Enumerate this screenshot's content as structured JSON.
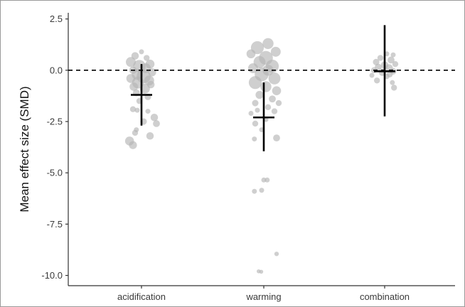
{
  "chart_data": {
    "type": "scatter",
    "title": "",
    "xlabel": "",
    "ylabel": "Mean effect size (SMD)",
    "ylim": [
      -10.5,
      2.8
    ],
    "categories": [
      "acidification",
      "warming",
      "combination"
    ],
    "y_ticks": [
      2.5,
      0.0,
      -2.5,
      -5.0,
      -7.5,
      -10.0
    ],
    "y_tick_labels": [
      "2.5",
      "0.0",
      "-2.5",
      "-5.0",
      "-7.5",
      "-10.0"
    ],
    "reference_line": {
      "y": 0,
      "style": "dashed"
    },
    "grid": false,
    "point_color": "#b5b5b5",
    "summary_color": "#000000",
    "summary": [
      {
        "category": "acidification",
        "mean": -1.2,
        "lower": -2.7,
        "upper": 0.3
      },
      {
        "category": "warming",
        "mean": -2.3,
        "lower": -3.95,
        "upper": -0.6
      },
      {
        "category": "combination",
        "mean": -0.05,
        "lower": -2.25,
        "upper": 2.2
      }
    ],
    "series": [
      {
        "category": "acidification",
        "points": [
          {
            "x": 0,
            "y": 0.9,
            "w": 1.0
          },
          {
            "x": -0.15,
            "y": 0.7,
            "w": 1.5
          },
          {
            "x": 0.12,
            "y": 0.6,
            "w": 1.2
          },
          {
            "x": -0.25,
            "y": 0.4,
            "w": 2.0
          },
          {
            "x": 0.2,
            "y": 0.3,
            "w": 1.8
          },
          {
            "x": -0.05,
            "y": 0.2,
            "w": 2.5
          },
          {
            "x": 0.1,
            "y": 0.1,
            "w": 2.0
          },
          {
            "x": -0.2,
            "y": 0.0,
            "w": 1.5
          },
          {
            "x": 0.25,
            "y": -0.1,
            "w": 1.6
          },
          {
            "x": -0.1,
            "y": -0.2,
            "w": 2.2
          },
          {
            "x": 0.05,
            "y": -0.3,
            "w": 2.8
          },
          {
            "x": -0.25,
            "y": -0.4,
            "w": 1.8
          },
          {
            "x": 0.18,
            "y": -0.5,
            "w": 2.0
          },
          {
            "x": -0.08,
            "y": -0.6,
            "w": 2.4
          },
          {
            "x": 0.22,
            "y": -0.7,
            "w": 1.5
          },
          {
            "x": -0.18,
            "y": -0.8,
            "w": 1.7
          },
          {
            "x": 0.08,
            "y": -0.9,
            "w": 2.0
          },
          {
            "x": -0.12,
            "y": -1.1,
            "w": 1.4
          },
          {
            "x": 0.15,
            "y": -1.3,
            "w": 1.3
          },
          {
            "x": -0.05,
            "y": -1.5,
            "w": 1.2
          },
          {
            "x": -0.2,
            "y": -1.9,
            "w": 1.2
          },
          {
            "x": -0.1,
            "y": -1.95,
            "w": 1.0
          },
          {
            "x": 0.15,
            "y": -2.0,
            "w": 1.0
          },
          {
            "x": 0.3,
            "y": -2.3,
            "w": 1.5
          },
          {
            "x": 0.05,
            "y": -2.5,
            "w": 1.3
          },
          {
            "x": 0.35,
            "y": -2.6,
            "w": 1.4
          },
          {
            "x": -0.12,
            "y": -2.9,
            "w": 1.0
          },
          {
            "x": -0.15,
            "y": -3.05,
            "w": 1.2
          },
          {
            "x": 0.2,
            "y": -3.2,
            "w": 1.5
          },
          {
            "x": -0.28,
            "y": -3.45,
            "w": 1.8
          },
          {
            "x": -0.2,
            "y": -3.65,
            "w": 1.6
          }
        ]
      },
      {
        "category": "warming",
        "points": [
          {
            "x": 0.1,
            "y": 1.3,
            "w": 2.2
          },
          {
            "x": -0.15,
            "y": 1.1,
            "w": 2.6
          },
          {
            "x": 0.28,
            "y": 0.9,
            "w": 2.0
          },
          {
            "x": -0.3,
            "y": 0.8,
            "w": 1.8
          },
          {
            "x": 0.05,
            "y": 0.6,
            "w": 2.8
          },
          {
            "x": -0.1,
            "y": 0.4,
            "w": 2.4
          },
          {
            "x": 0.2,
            "y": 0.2,
            "w": 2.6
          },
          {
            "x": -0.25,
            "y": 0.1,
            "w": 2.0
          },
          {
            "x": 0.1,
            "y": 0.0,
            "w": 2.2
          },
          {
            "x": -0.05,
            "y": -0.2,
            "w": 2.8
          },
          {
            "x": 0.25,
            "y": -0.4,
            "w": 2.4
          },
          {
            "x": -0.2,
            "y": -0.6,
            "w": 2.6
          },
          {
            "x": 0.05,
            "y": -0.8,
            "w": 2.2
          },
          {
            "x": 0.3,
            "y": -1.0,
            "w": 1.8
          },
          {
            "x": -0.1,
            "y": -1.2,
            "w": 1.6
          },
          {
            "x": 0.2,
            "y": -1.4,
            "w": 1.4
          },
          {
            "x": -0.2,
            "y": -1.6,
            "w": 1.3
          },
          {
            "x": 0.35,
            "y": -1.6,
            "w": 1.2
          },
          {
            "x": 0.1,
            "y": -1.8,
            "w": 1.2
          },
          {
            "x": -0.15,
            "y": -1.95,
            "w": 1.0
          },
          {
            "x": 0.25,
            "y": -2.0,
            "w": 1.2
          },
          {
            "x": -0.3,
            "y": -2.1,
            "w": 1.0
          },
          {
            "x": 0.05,
            "y": -2.4,
            "w": 1.0
          },
          {
            "x": -0.2,
            "y": -2.6,
            "w": 1.2
          },
          {
            "x": -0.05,
            "y": -2.9,
            "w": 1.0
          },
          {
            "x": 0.3,
            "y": -3.3,
            "w": 1.4
          },
          {
            "x": -0.22,
            "y": -3.35,
            "w": 1.0
          },
          {
            "x": 0.0,
            "y": -5.35,
            "w": 1.0
          },
          {
            "x": 0.08,
            "y": -5.35,
            "w": 1.0
          },
          {
            "x": -0.05,
            "y": -5.85,
            "w": 1.0
          },
          {
            "x": -0.22,
            "y": -5.9,
            "w": 1.0
          },
          {
            "x": 0.3,
            "y": -8.95,
            "w": 0.9
          },
          {
            "x": -0.12,
            "y": -9.8,
            "w": 0.8
          },
          {
            "x": -0.06,
            "y": -9.82,
            "w": 0.8
          }
        ]
      },
      {
        "category": "combination",
        "points": [
          {
            "x": 0.05,
            "y": 0.8,
            "w": 1.0
          },
          {
            "x": 0.2,
            "y": 0.75,
            "w": 1.0
          },
          {
            "x": -0.1,
            "y": 0.6,
            "w": 1.2
          },
          {
            "x": 0.15,
            "y": 0.5,
            "w": 1.4
          },
          {
            "x": -0.2,
            "y": 0.4,
            "w": 1.3
          },
          {
            "x": 0.25,
            "y": 0.3,
            "w": 1.2
          },
          {
            "x": 0.0,
            "y": 0.25,
            "w": 1.5
          },
          {
            "x": -0.15,
            "y": 0.15,
            "w": 1.4
          },
          {
            "x": 0.1,
            "y": 0.1,
            "w": 1.6
          },
          {
            "x": -0.25,
            "y": 0.0,
            "w": 1.2
          },
          {
            "x": 0.2,
            "y": -0.05,
            "w": 1.3
          },
          {
            "x": -0.05,
            "y": -0.1,
            "w": 1.5
          },
          {
            "x": 0.12,
            "y": -0.2,
            "w": 1.2
          },
          {
            "x": -0.3,
            "y": -0.25,
            "w": 1.0
          },
          {
            "x": 0.05,
            "y": -0.3,
            "w": 1.1
          },
          {
            "x": -0.18,
            "y": -0.5,
            "w": 1.2
          },
          {
            "x": 0.18,
            "y": -0.6,
            "w": 1.0
          },
          {
            "x": 0.22,
            "y": -0.85,
            "w": 1.2
          }
        ]
      }
    ]
  }
}
